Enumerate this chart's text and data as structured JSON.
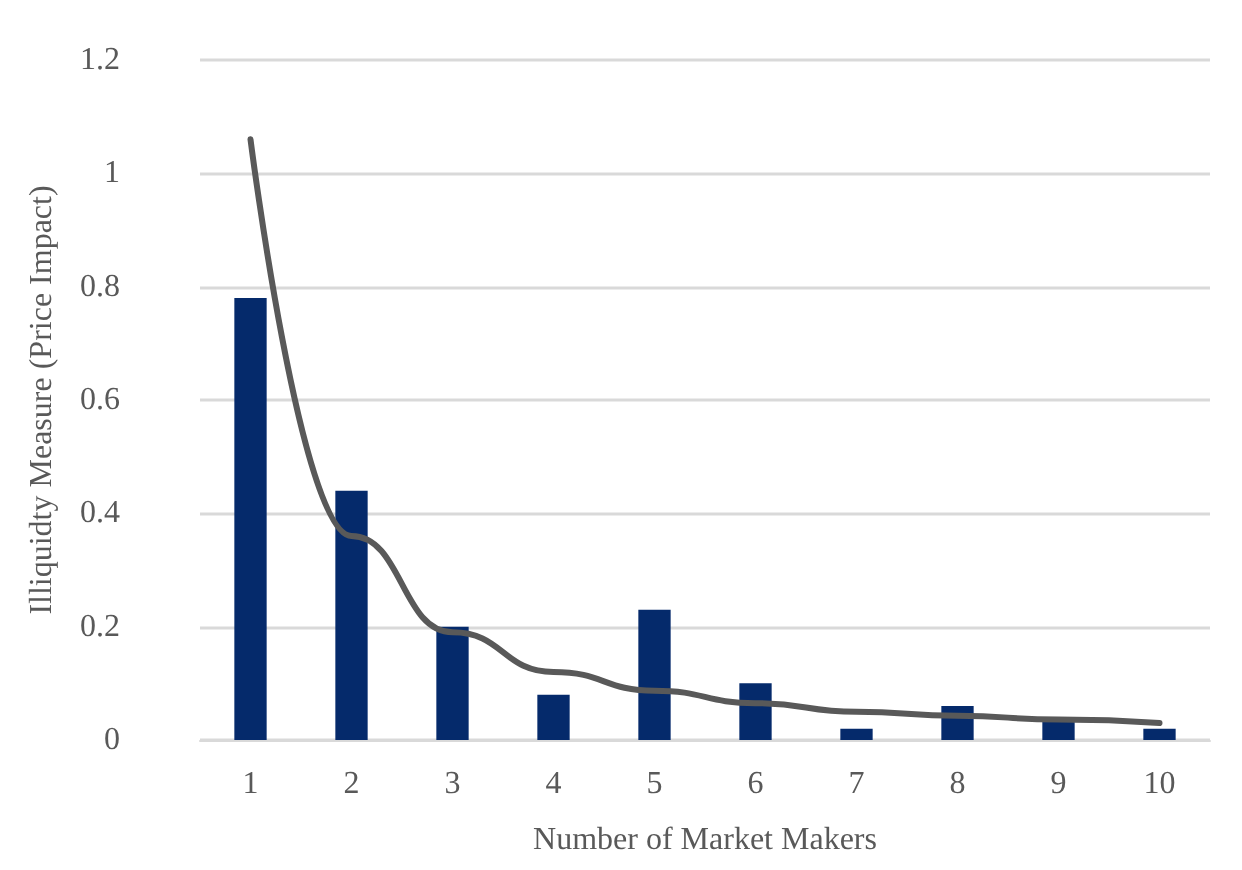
{
  "chart_data": {
    "type": "bar",
    "xlabel": "Number of Market Makers",
    "ylabel": "Illiquidty Measure (Price Impact)",
    "categories": [
      "1",
      "2",
      "3",
      "4",
      "5",
      "6",
      "7",
      "8",
      "9",
      "10"
    ],
    "series": [
      {
        "color": "#052a6b",
        "values": [
          0.78,
          0.44,
          0.2,
          0.08,
          0.23,
          0.1,
          0.02,
          0.06,
          0.04,
          0.02
        ]
      },
      {
        "type": "line",
        "color": "#595959",
        "values": [
          1.06,
          0.36,
          0.19,
          0.12,
          0.087,
          0.065,
          0.05,
          0.043,
          0.036,
          0.03
        ]
      }
    ],
    "ylim": [
      0,
      1.2
    ],
    "yticks": [
      0,
      0.2,
      0.4,
      0.6,
      0.8,
      1,
      1.2
    ],
    "grid": "y",
    "marker": "none",
    "line_style": "solid"
  }
}
